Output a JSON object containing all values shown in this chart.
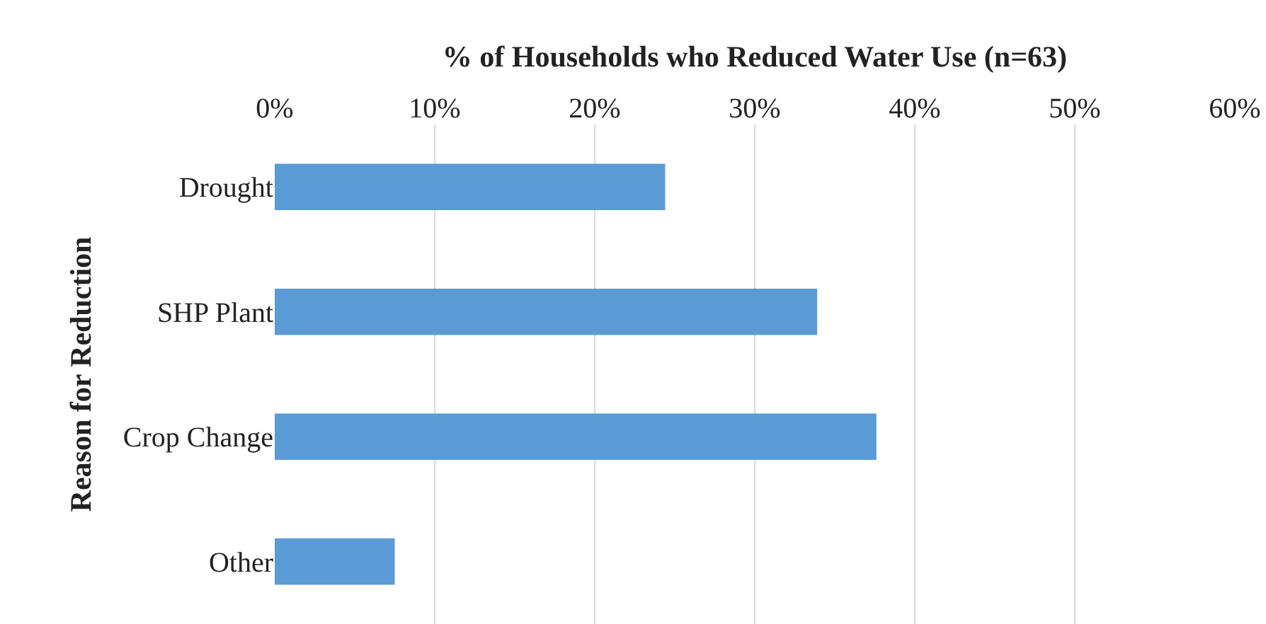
{
  "chart_data": {
    "type": "bar",
    "orientation": "horizontal",
    "xlabel": "% of Households who Reduced Water Use (n=63)",
    "ylabel": "Reason for Reduction",
    "categories": [
      "Drought",
      "SHP Plant",
      "Crop Change",
      "Other"
    ],
    "values": [
      24.4,
      33.9,
      37.6,
      7.5
    ],
    "color": "#5b9bd5",
    "xlim": [
      0,
      60
    ],
    "xticks": [
      {
        "value": 0,
        "label": "0%"
      },
      {
        "value": 10,
        "label": "10%"
      },
      {
        "value": 20,
        "label": "20%"
      },
      {
        "value": 30,
        "label": "30%"
      },
      {
        "value": 40,
        "label": "40%"
      },
      {
        "value": 50,
        "label": "50%"
      },
      {
        "value": 60,
        "label": "60%"
      }
    ],
    "grid": "x"
  }
}
